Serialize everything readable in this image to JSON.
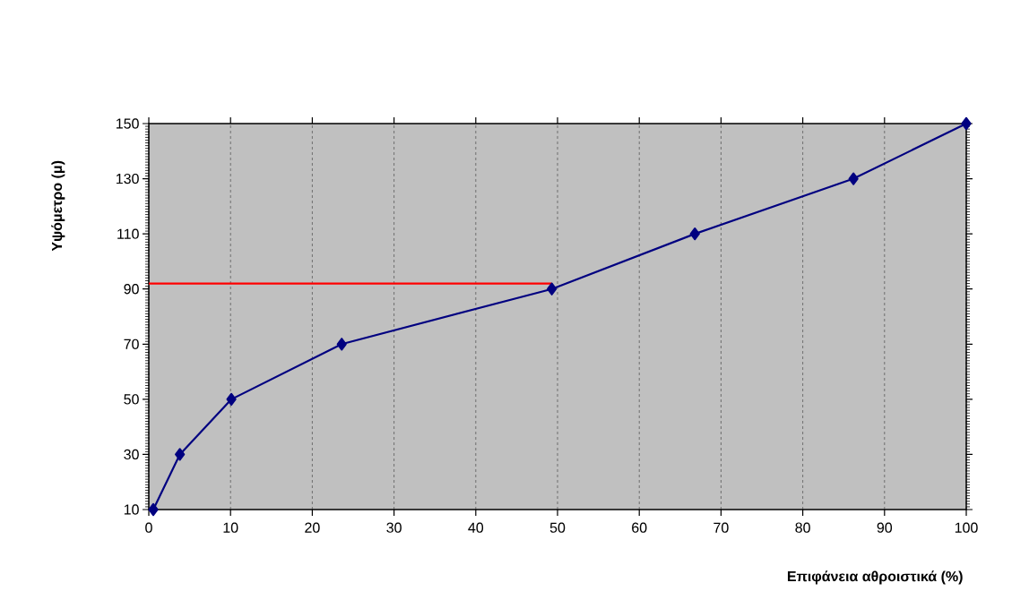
{
  "chart_data": {
    "type": "line",
    "xlabel": "Επιφάνεια αθροιστικά (%)",
    "ylabel": "Υψόμετρο (μ)",
    "series": [
      {
        "color": "#000080",
        "x": [
          0.55,
          3.8,
          10.1,
          23.6,
          49.3,
          66.8,
          86.2,
          100
        ],
        "values": [
          10,
          30,
          50,
          70,
          90,
          110,
          130,
          150
        ]
      },
      {
        "color": "#ff0000",
        "x": [
          0,
          49.3
        ],
        "values": [
          92,
          92
        ],
        "marker": "none"
      }
    ],
    "xlim": [
      0,
      100
    ],
    "ylim": [
      10,
      150
    ],
    "xticks": [
      0,
      10,
      20,
      30,
      40,
      50,
      60,
      70,
      80,
      90,
      100
    ],
    "yticks": [
      10,
      30,
      50,
      70,
      90,
      110,
      130,
      150
    ],
    "grid": "x",
    "marker": "diamond",
    "line_style": "solid"
  }
}
